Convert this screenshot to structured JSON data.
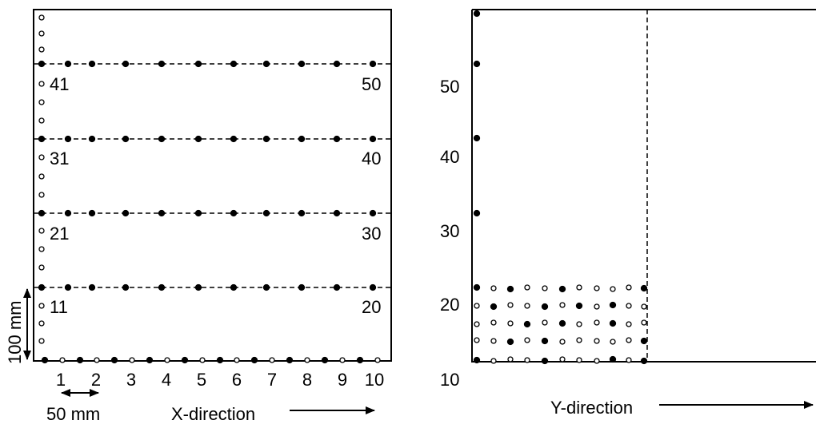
{
  "left_panel": {
    "row_labels": [
      {
        "left": "41",
        "right": "50"
      },
      {
        "left": "31",
        "right": "40"
      },
      {
        "left": "21",
        "right": "30"
      },
      {
        "left": "11",
        "right": "20"
      }
    ],
    "x_ticks": [
      "1",
      "2",
      "3",
      "4",
      "5",
      "6",
      "7",
      "8",
      "9",
      "10"
    ],
    "x_direction_label": "X-direction",
    "spacing_label": "50 mm",
    "height_label": "100 mm"
  },
  "right_panel": {
    "y_ticks": [
      "50",
      "40",
      "30",
      "20",
      "10"
    ],
    "y_direction_label": "Y-direction"
  },
  "colors": {
    "ink": "#000000",
    "open_marker": "#ffffff"
  }
}
